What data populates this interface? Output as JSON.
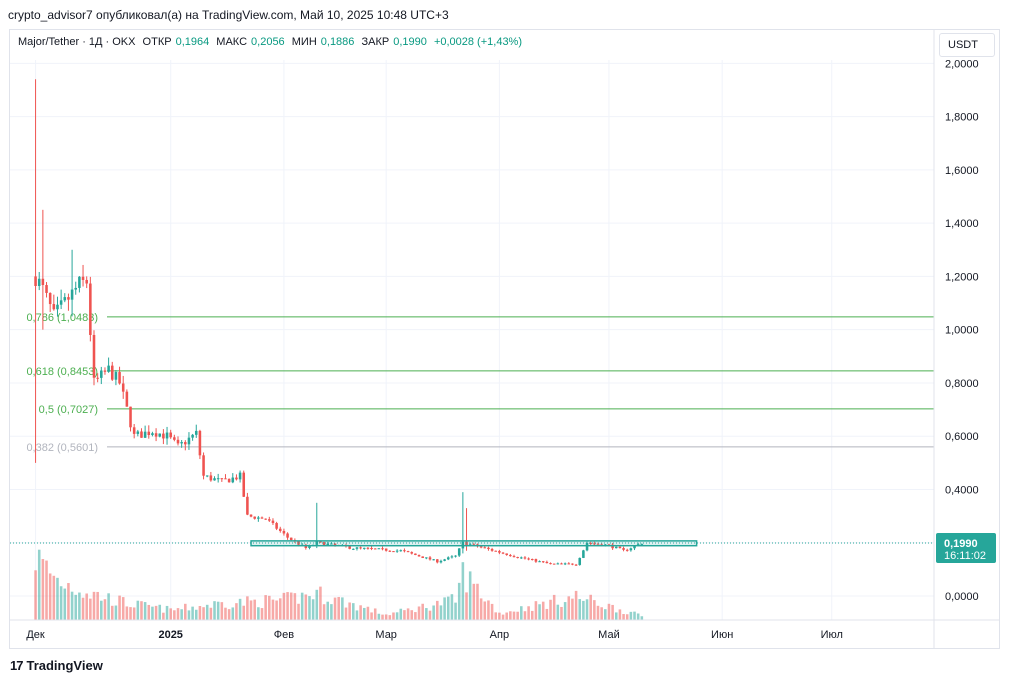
{
  "header": {
    "published": "crypto_advisor7 опубликовал(а) на TradingView.com, Май 10, 2025 10:48 UTC+3"
  },
  "legend": {
    "symbol": "Major/Tether · 1Д · OKX",
    "open_label": "ОТКР",
    "open": "0,1964",
    "high_label": "МАКС",
    "high": "0,2056",
    "low_label": "МИН",
    "low": "0,1886",
    "close_label": "ЗАКР",
    "close": "0,1990",
    "change": "+0,0028 (+1,43%)"
  },
  "currency_button": "USDT",
  "price_tag": {
    "value": "0,1990",
    "countdown": "16:11:02"
  },
  "footer": {
    "logo_glyph": "17",
    "brand": "TradingView"
  },
  "colors": {
    "up": "#26a69a",
    "down": "#ef5350",
    "fib": "#4caf50",
    "fib_minor": "#b2b5be",
    "box": "#26a69a"
  },
  "chart_data": {
    "type": "candlestick",
    "y_axis": {
      "ylim": [
        -0.09,
        2.02
      ],
      "ticks": [
        0,
        0.2,
        0.4,
        0.6,
        0.8,
        1.0,
        1.2,
        1.4,
        1.6,
        1.8,
        2.0
      ],
      "tick_labels": [
        "0,0000",
        "0,2000",
        "0,4000",
        "0,6000",
        "0,8000",
        "1,0000",
        "1,2000",
        "1,4000",
        "1,6000",
        "1,8000",
        "2,0000"
      ]
    },
    "x_axis": {
      "range": [
        "2024-11-18",
        "2025-07-29"
      ],
      "ticks": [
        {
          "date": "2024-11-25",
          "label": "Дек"
        },
        {
          "date": "2025-01-01",
          "label": "2025"
        },
        {
          "date": "2025-02-01",
          "label": "Фев"
        },
        {
          "date": "2025-03-01",
          "label": "Мар"
        },
        {
          "date": "2025-04-01",
          "label": "Апр"
        },
        {
          "date": "2025-05-01",
          "label": "Май"
        },
        {
          "date": "2025-06-01",
          "label": "Июн"
        },
        {
          "date": "2025-07-01",
          "label": "Июл"
        }
      ]
    },
    "fib_levels": [
      {
        "ratio": "0,786",
        "price": 1.0483,
        "label": "0,786 (1,0483)"
      },
      {
        "ratio": "0,618",
        "price": 0.8453,
        "label": "0,618 (0,8453)"
      },
      {
        "ratio": "0,5",
        "price": 0.7027,
        "label": "0,5 (0,7027)"
      },
      {
        "ratio": "0,382",
        "price": 0.5601,
        "label": "0,382 (0,5601)"
      }
    ],
    "current_price": 0.199,
    "range_box": {
      "x_start": "2025-01-23",
      "x_end": "2025-05-25",
      "y_low": 0.189,
      "y_high": 0.207
    },
    "price_waypoints": [
      {
        "date": "2024-11-25",
        "price": 1.2
      },
      {
        "date": "2024-11-27",
        "price": 1.15
      },
      {
        "date": "2024-11-30",
        "price": 1.05
      },
      {
        "date": "2024-12-03",
        "price": 1.1
      },
      {
        "date": "2024-12-07",
        "price": 1.17
      },
      {
        "date": "2024-12-09",
        "price": 1.18
      },
      {
        "date": "2024-12-11",
        "price": 0.8
      },
      {
        "date": "2024-12-15",
        "price": 0.85
      },
      {
        "date": "2024-12-18",
        "price": 0.8
      },
      {
        "date": "2024-12-22",
        "price": 0.6
      },
      {
        "date": "2024-12-27",
        "price": 0.62
      },
      {
        "date": "2024-12-31",
        "price": 0.6
      },
      {
        "date": "2025-01-03",
        "price": 0.56
      },
      {
        "date": "2025-01-08",
        "price": 0.61
      },
      {
        "date": "2025-01-10",
        "price": 0.45
      },
      {
        "date": "2025-01-15",
        "price": 0.43
      },
      {
        "date": "2025-01-20",
        "price": 0.45
      },
      {
        "date": "2025-01-22",
        "price": 0.3
      },
      {
        "date": "2025-01-27",
        "price": 0.29
      },
      {
        "date": "2025-02-02",
        "price": 0.22
      },
      {
        "date": "2025-02-07",
        "price": 0.18
      },
      {
        "date": "2025-02-10",
        "price": 0.2
      },
      {
        "date": "2025-02-20",
        "price": 0.18
      },
      {
        "date": "2025-03-05",
        "price": 0.17
      },
      {
        "date": "2025-03-15",
        "price": 0.13
      },
      {
        "date": "2025-03-20",
        "price": 0.15
      },
      {
        "date": "2025-03-22",
        "price": 0.2
      },
      {
        "date": "2025-03-25",
        "price": 0.19
      },
      {
        "date": "2025-04-05",
        "price": 0.15
      },
      {
        "date": "2025-04-15",
        "price": 0.12
      },
      {
        "date": "2025-04-22",
        "price": 0.12
      },
      {
        "date": "2025-04-25",
        "price": 0.2
      },
      {
        "date": "2025-05-01",
        "price": 0.19
      },
      {
        "date": "2025-05-05",
        "price": 0.17
      },
      {
        "date": "2025-05-10",
        "price": 0.199
      }
    ],
    "spikes": [
      {
        "date": "2024-11-25",
        "high": 1.94,
        "low": 0.5
      },
      {
        "date": "2024-11-27",
        "high": 1.45,
        "low": 1.0
      },
      {
        "date": "2024-12-05",
        "high": 1.3,
        "low": 1.05
      },
      {
        "date": "2025-02-10",
        "high": 0.35,
        "low": 0.18
      },
      {
        "date": "2025-03-22",
        "high": 0.39,
        "low": 0.16
      },
      {
        "date": "2025-03-23",
        "high": 0.33,
        "low": 0.17
      }
    ],
    "volume_profile": [
      {
        "date": "2024-11-25",
        "v": 0.95
      },
      {
        "date": "2024-12-01",
        "v": 0.6
      },
      {
        "date": "2024-12-10",
        "v": 0.4
      },
      {
        "date": "2024-12-20",
        "v": 0.25
      },
      {
        "date": "2025-01-01",
        "v": 0.15
      },
      {
        "date": "2025-01-15",
        "v": 0.25
      },
      {
        "date": "2025-02-01",
        "v": 0.3
      },
      {
        "date": "2025-02-10",
        "v": 0.4
      },
      {
        "date": "2025-03-01",
        "v": 0.08
      },
      {
        "date": "2025-03-20",
        "v": 0.3
      },
      {
        "date": "2025-03-22",
        "v": 0.7
      },
      {
        "date": "2025-04-01",
        "v": 0.1
      },
      {
        "date": "2025-04-22",
        "v": 0.35
      },
      {
        "date": "2025-05-10",
        "v": 0.06
      }
    ]
  }
}
